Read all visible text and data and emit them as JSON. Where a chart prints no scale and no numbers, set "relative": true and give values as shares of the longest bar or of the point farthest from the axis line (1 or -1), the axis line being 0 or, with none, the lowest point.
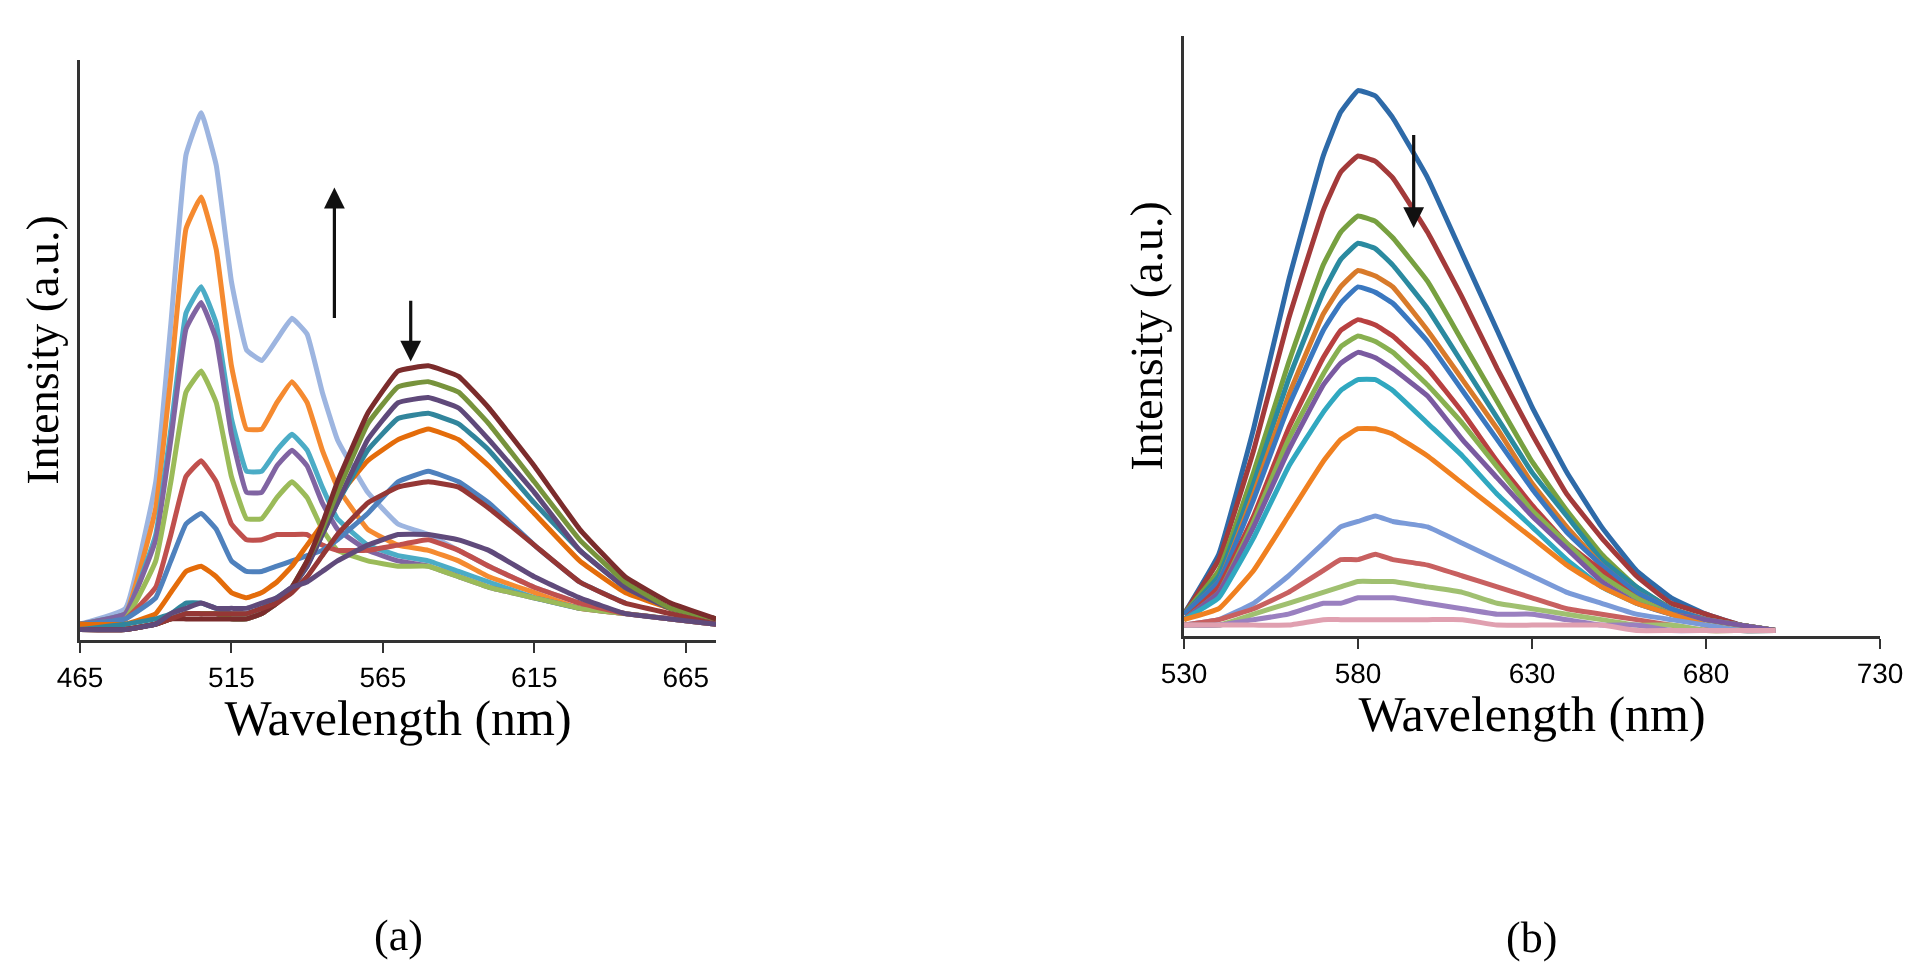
{
  "chart_data": [
    {
      "type": "line",
      "relative": true,
      "xlabel": "Wavelength (nm)",
      "ylabel": "Intensity (a.u.)",
      "annotations": [
        "(a)"
      ],
      "marker": "none",
      "line_style": "solid",
      "xlim": [
        465,
        675
      ],
      "xticks": [
        465,
        515,
        565,
        615,
        665
      ],
      "x": [
        465,
        480,
        490,
        495,
        500,
        505,
        510,
        515,
        520,
        525,
        530,
        535,
        540,
        545,
        550,
        560,
        570,
        580,
        590,
        600,
        615,
        630,
        645,
        660,
        675
      ],
      "series": [
        {
          "color": "#9db5e0",
          "values": [
            0.03,
            0.06,
            0.3,
            0.6,
            0.92,
            1.0,
            0.9,
            0.68,
            0.55,
            0.53,
            0.57,
            0.61,
            0.58,
            0.47,
            0.38,
            0.28,
            0.22,
            0.2,
            0.17,
            0.14,
            0.1,
            0.07,
            0.05,
            0.04,
            0.03
          ]
        },
        {
          "color": "#f58a30",
          "values": [
            0.03,
            0.05,
            0.25,
            0.5,
            0.78,
            0.84,
            0.74,
            0.52,
            0.4,
            0.4,
            0.45,
            0.49,
            0.45,
            0.36,
            0.29,
            0.21,
            0.18,
            0.17,
            0.15,
            0.12,
            0.09,
            0.06,
            0.05,
            null,
            null
          ]
        },
        {
          "color": "#4bacc6",
          "values": [
            0.03,
            0.05,
            0.2,
            0.4,
            0.62,
            0.67,
            0.6,
            0.42,
            0.32,
            0.32,
            0.36,
            0.39,
            0.36,
            0.29,
            0.23,
            0.18,
            0.16,
            0.15,
            0.13,
            0.11,
            0.08,
            0.06,
            null,
            null,
            null
          ]
        },
        {
          "color": "#8064a2",
          "values": [
            0.03,
            0.05,
            0.19,
            0.38,
            0.59,
            0.64,
            0.57,
            0.39,
            0.28,
            0.28,
            0.33,
            0.36,
            0.33,
            0.26,
            0.21,
            0.17,
            0.15,
            0.14,
            0.12,
            0.1,
            0.08,
            0.06,
            0.05,
            0.04,
            0.03
          ]
        },
        {
          "color": "#9bbb59",
          "values": [
            0.03,
            0.04,
            0.15,
            0.3,
            0.47,
            0.51,
            0.45,
            0.31,
            0.23,
            0.23,
            0.27,
            0.3,
            0.27,
            0.21,
            0.17,
            0.15,
            0.14,
            0.14,
            0.12,
            0.1,
            0.08,
            0.06,
            0.05,
            0.04,
            0.03
          ]
        },
        {
          "color": "#c0504d",
          "values": [
            0.03,
            0.04,
            0.1,
            0.2,
            0.31,
            0.34,
            0.3,
            0.22,
            0.19,
            0.19,
            0.2,
            0.2,
            0.2,
            0.18,
            0.17,
            0.17,
            0.18,
            0.19,
            0.17,
            0.14,
            0.1,
            0.07,
            0.05,
            0.04,
            0.03
          ]
        },
        {
          "color": "#4f81bd",
          "values": [
            0.03,
            0.04,
            0.08,
            0.15,
            0.22,
            0.24,
            0.21,
            0.15,
            0.13,
            0.13,
            0.14,
            0.15,
            0.16,
            0.17,
            0.19,
            0.24,
            0.3,
            0.32,
            0.3,
            0.26,
            0.18,
            0.11,
            0.07,
            null,
            null
          ]
        },
        {
          "color": "#e46c0a",
          "values": [
            0.03,
            0.03,
            0.05,
            0.09,
            0.13,
            0.14,
            0.12,
            0.09,
            0.08,
            0.09,
            0.11,
            0.14,
            0.18,
            0.22,
            0.27,
            0.34,
            0.38,
            0.4,
            0.38,
            0.33,
            0.24,
            0.15,
            0.09,
            0.06,
            0.04
          ]
        },
        {
          "color": "#31859c",
          "values": [
            0.02,
            0.03,
            0.04,
            0.05,
            0.07,
            0.07,
            0.06,
            0.05,
            0.05,
            0.06,
            0.08,
            0.1,
            0.14,
            0.2,
            0.26,
            0.36,
            0.42,
            0.43,
            0.41,
            0.36,
            0.26,
            0.17,
            0.1,
            0.06,
            0.04
          ]
        },
        {
          "color": "#5f497a",
          "values": [
            0.02,
            0.02,
            0.03,
            0.04,
            0.05,
            0.05,
            0.05,
            0.04,
            0.04,
            0.05,
            0.07,
            0.1,
            0.14,
            0.2,
            0.26,
            0.38,
            0.45,
            0.46,
            0.44,
            0.38,
            0.28,
            0.17,
            0.1,
            0.06,
            0.04
          ]
        },
        {
          "color": "#77933c",
          "values": [
            0.02,
            0.02,
            0.03,
            0.04,
            0.05,
            0.05,
            0.05,
            0.04,
            0.04,
            0.05,
            0.07,
            0.1,
            0.15,
            0.21,
            0.28,
            0.41,
            0.48,
            0.49,
            0.47,
            0.41,
            0.3,
            0.19,
            0.11,
            0.06,
            0.04
          ]
        },
        {
          "color": "#7b2c2c",
          "values": [
            0.02,
            0.02,
            0.03,
            0.04,
            0.04,
            0.04,
            0.04,
            0.04,
            0.04,
            0.05,
            0.07,
            0.1,
            0.15,
            0.22,
            0.3,
            0.43,
            0.51,
            0.52,
            0.5,
            0.44,
            0.33,
            0.21,
            0.12,
            0.07,
            0.04
          ]
        },
        {
          "color": "#953735",
          "values": [
            0.02,
            0.02,
            0.03,
            0.04,
            0.05,
            0.05,
            0.05,
            0.05,
            0.05,
            0.06,
            0.07,
            0.09,
            0.12,
            0.16,
            0.2,
            0.26,
            0.29,
            0.3,
            0.29,
            0.25,
            0.18,
            0.11,
            0.07,
            0.05,
            0.03
          ]
        },
        {
          "color": "#604a7b",
          "values": [
            0.02,
            0.02,
            0.03,
            0.05,
            0.06,
            0.07,
            0.06,
            0.06,
            0.06,
            0.07,
            0.08,
            0.1,
            0.11,
            0.13,
            0.15,
            0.18,
            0.2,
            0.2,
            0.19,
            0.17,
            0.12,
            0.08,
            0.05,
            0.04,
            0.03
          ]
        }
      ]
    },
    {
      "type": "line",
      "relative": true,
      "xlabel": "Wavelength (nm)",
      "ylabel": "Intensity (a.u.)",
      "annotations": [
        "(b)"
      ],
      "marker": "none",
      "line_style": "solid",
      "xlim": [
        530,
        730
      ],
      "xticks": [
        530,
        580,
        630,
        680,
        730
      ],
      "x": [
        530,
        540,
        550,
        560,
        570,
        575,
        580,
        585,
        590,
        600,
        610,
        620,
        630,
        640,
        650,
        660,
        670,
        680,
        690,
        700
      ],
      "series": [
        {
          "color": "#2e6aa8",
          "values": [
            0.04,
            0.15,
            0.38,
            0.65,
            0.88,
            0.96,
            1.0,
            0.99,
            0.95,
            0.84,
            0.7,
            0.56,
            0.42,
            0.3,
            0.2,
            0.12,
            0.07,
            0.04,
            0.02,
            0.01
          ]
        },
        {
          "color": "#a33a3a",
          "values": [
            0.04,
            0.14,
            0.34,
            0.58,
            0.78,
            0.85,
            0.88,
            0.87,
            0.84,
            0.74,
            0.62,
            0.49,
            0.37,
            0.26,
            0.18,
            0.11,
            0.06,
            0.04,
            0.02,
            0.01
          ]
        },
        {
          "color": "#77a040",
          "values": [
            0.04,
            0.12,
            0.3,
            0.5,
            0.68,
            0.74,
            0.77,
            0.76,
            0.73,
            0.65,
            0.54,
            0.43,
            0.32,
            0.23,
            0.15,
            0.09,
            0.05,
            0.03,
            0.02,
            0.01
          ]
        },
        {
          "color": "#2a8aa0",
          "values": [
            0.04,
            0.11,
            0.28,
            0.47,
            0.63,
            0.69,
            0.72,
            0.71,
            0.68,
            0.6,
            0.5,
            0.4,
            0.3,
            0.22,
            0.14,
            0.09,
            0.05,
            0.03,
            0.02,
            0.01
          ]
        },
        {
          "color": "#d87a2a",
          "values": [
            0.04,
            0.1,
            0.26,
            0.44,
            0.59,
            0.64,
            0.67,
            0.66,
            0.64,
            0.56,
            0.47,
            0.38,
            0.28,
            0.2,
            0.13,
            0.08,
            0.05,
            0.03,
            0.02,
            0.01
          ]
        },
        {
          "color": "#3a78c0",
          "values": [
            0.04,
            0.1,
            0.25,
            0.42,
            0.56,
            0.61,
            0.64,
            0.63,
            0.61,
            0.54,
            0.45,
            0.36,
            0.27,
            0.19,
            0.13,
            0.08,
            0.05,
            0.03,
            0.02,
            0.01
          ]
        },
        {
          "color": "#b84040",
          "values": [
            0.03,
            0.09,
            0.22,
            0.38,
            0.51,
            0.56,
            0.58,
            0.57,
            0.55,
            0.49,
            0.41,
            0.32,
            0.24,
            0.17,
            0.12,
            0.07,
            0.04,
            0.03,
            0.02,
            0.01
          ]
        },
        {
          "color": "#88b050",
          "values": [
            0.03,
            0.08,
            0.21,
            0.36,
            0.48,
            0.53,
            0.55,
            0.54,
            0.52,
            0.46,
            0.39,
            0.31,
            0.23,
            0.17,
            0.11,
            0.07,
            0.04,
            0.03,
            0.02,
            0.01
          ]
        },
        {
          "color": "#7a5aa0",
          "values": [
            0.03,
            0.08,
            0.2,
            0.34,
            0.46,
            0.5,
            0.52,
            0.51,
            0.49,
            0.44,
            0.36,
            0.29,
            0.22,
            0.16,
            0.1,
            0.06,
            0.04,
            0.03,
            0.02,
            0.01
          ]
        },
        {
          "color": "#30a8c0",
          "values": [
            0.03,
            0.07,
            0.18,
            0.31,
            0.41,
            0.45,
            0.47,
            0.47,
            0.45,
            0.39,
            0.33,
            0.26,
            0.2,
            0.14,
            0.09,
            0.06,
            0.04,
            0.02,
            0.01,
            0.01
          ]
        },
        {
          "color": "#f08020",
          "values": [
            0.03,
            0.05,
            0.12,
            0.22,
            0.32,
            0.36,
            0.38,
            0.38,
            0.37,
            0.33,
            0.28,
            0.23,
            0.18,
            0.13,
            0.09,
            0.06,
            0.04,
            0.02,
            0.01,
            0.01
          ]
        },
        {
          "color": "#7a9ad8",
          "values": [
            0.02,
            0.03,
            0.06,
            0.11,
            0.17,
            0.2,
            0.21,
            0.22,
            0.21,
            0.2,
            0.17,
            0.14,
            0.11,
            0.08,
            0.06,
            0.04,
            0.03,
            0.02,
            0.01,
            0.01
          ]
        },
        {
          "color": "#c86060",
          "values": [
            0.02,
            0.03,
            0.05,
            0.08,
            0.12,
            0.14,
            0.14,
            0.15,
            0.14,
            0.13,
            0.11,
            0.09,
            0.07,
            0.05,
            0.04,
            0.03,
            0.02,
            0.01,
            0.01,
            0.01
          ]
        },
        {
          "color": "#a0c070",
          "values": [
            0.02,
            0.02,
            0.04,
            0.06,
            0.08,
            0.09,
            0.1,
            0.1,
            0.1,
            0.09,
            0.08,
            0.06,
            0.05,
            0.04,
            0.03,
            0.02,
            0.02,
            0.01,
            0.01,
            0.01
          ]
        },
        {
          "color": "#9a80c0",
          "values": [
            0.02,
            0.02,
            0.03,
            0.04,
            0.06,
            0.06,
            0.07,
            0.07,
            0.07,
            0.06,
            0.05,
            0.04,
            0.04,
            0.03,
            0.02,
            0.02,
            0.01,
            0.01,
            0.01,
            0.01
          ]
        },
        {
          "color": "#e0a0b0",
          "values": [
            0.02,
            0.02,
            0.02,
            0.02,
            0.03,
            0.03,
            0.03,
            0.03,
            0.03,
            0.03,
            0.03,
            0.02,
            0.02,
            0.02,
            0.02,
            0.01,
            0.01,
            0.01,
            0.01,
            0.01
          ]
        }
      ]
    }
  ]
}
